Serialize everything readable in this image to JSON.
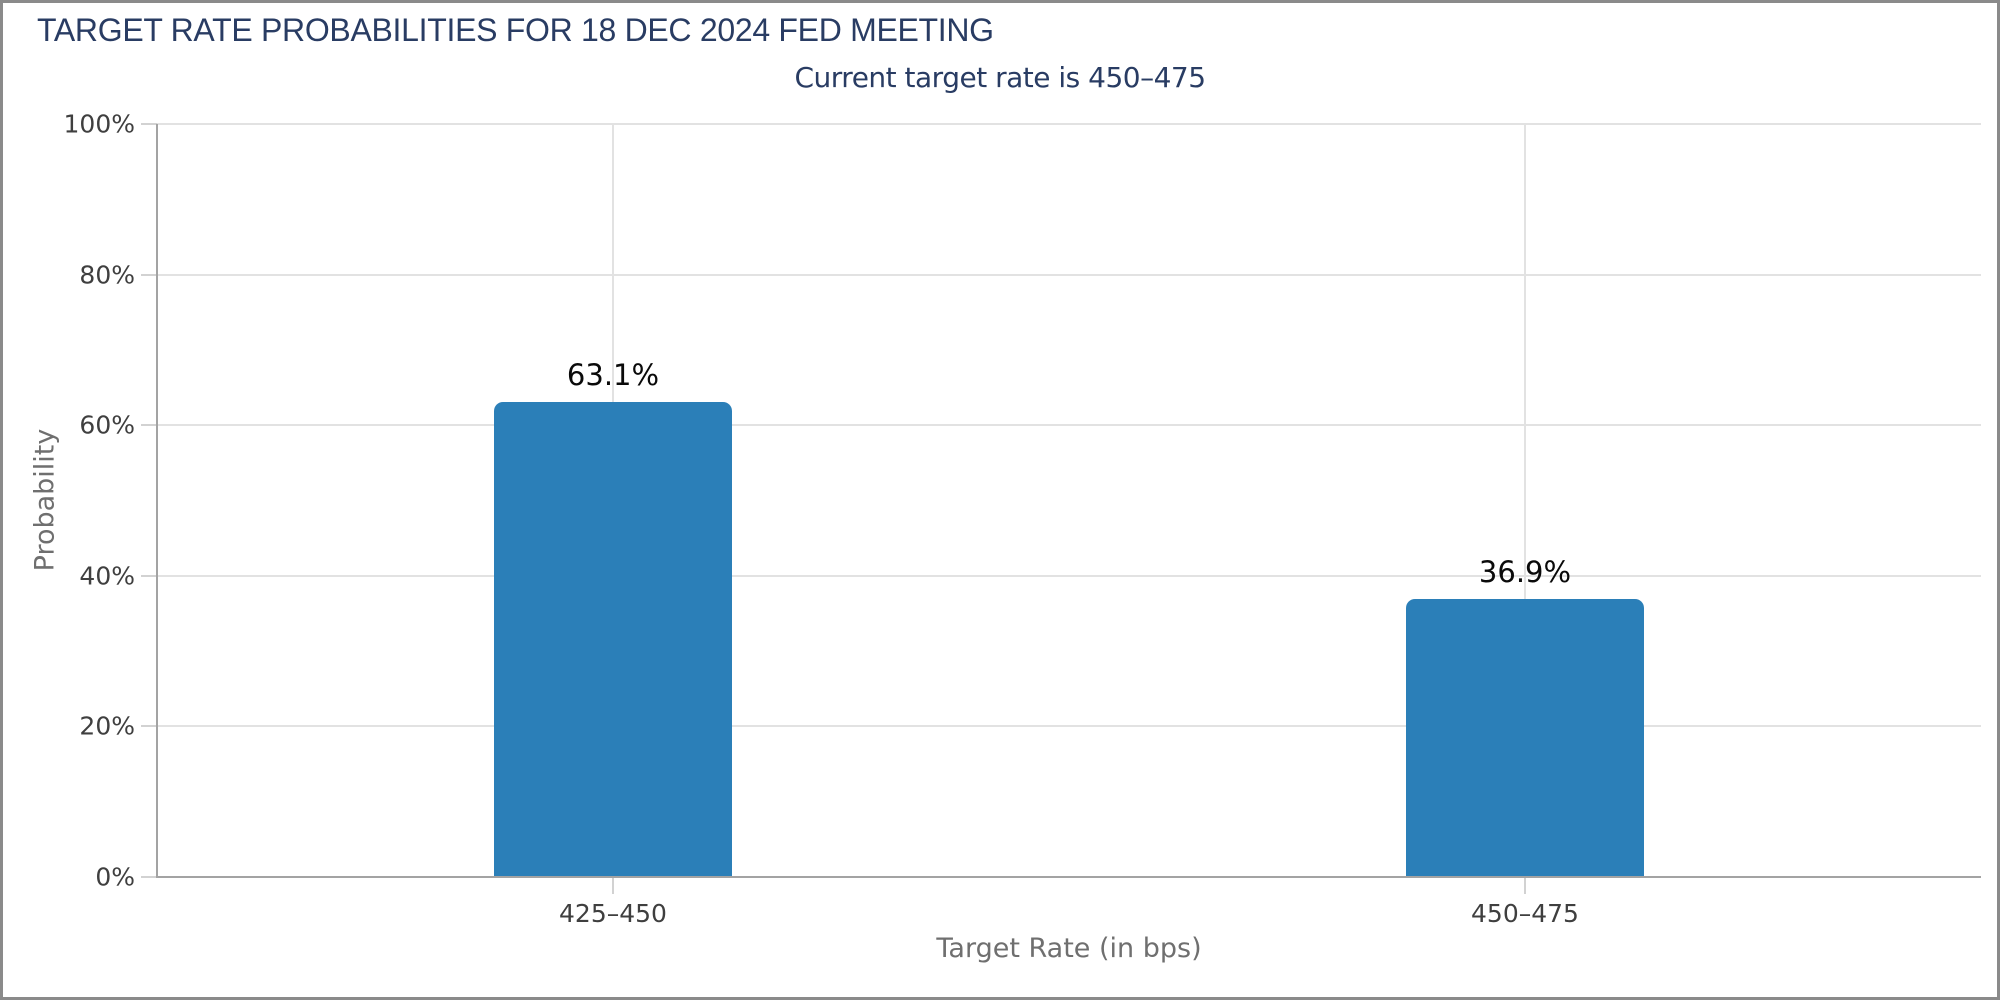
{
  "colors": {
    "bar": "#2b7fb8",
    "title_text": "#293c63",
    "tick_text": "#3f3f3f",
    "axis_title_text": "#6f6f6f",
    "value_label_text": "#0a0a0a",
    "gridline": "#e2e2e2",
    "axis_line": "#a3a3a3",
    "tick_mark": "#d2d2d2",
    "panel_border": "#8a8a8a",
    "background": "#ffffff"
  },
  "chart_data": {
    "type": "bar",
    "title": "TARGET RATE PROBABILITIES FOR 18 DEC 2024 FED MEETING",
    "subtitle": "Current target rate is 450–475",
    "categories": [
      "425–450",
      "450–475"
    ],
    "values": [
      63.1,
      36.9
    ],
    "value_labels": [
      "63.1%",
      "36.9%"
    ],
    "xlabel": "Target Rate (in bps)",
    "ylabel": "Probability",
    "ylim": [
      0,
      100
    ],
    "yticks": [
      0,
      20,
      40,
      60,
      80,
      100
    ],
    "ytick_labels": [
      "0%",
      "20%",
      "40%",
      "60%",
      "80%",
      "100%"
    ],
    "grid": "horizontal gridlines at y ticks, vertical gridlines at category centers",
    "legend": false
  }
}
